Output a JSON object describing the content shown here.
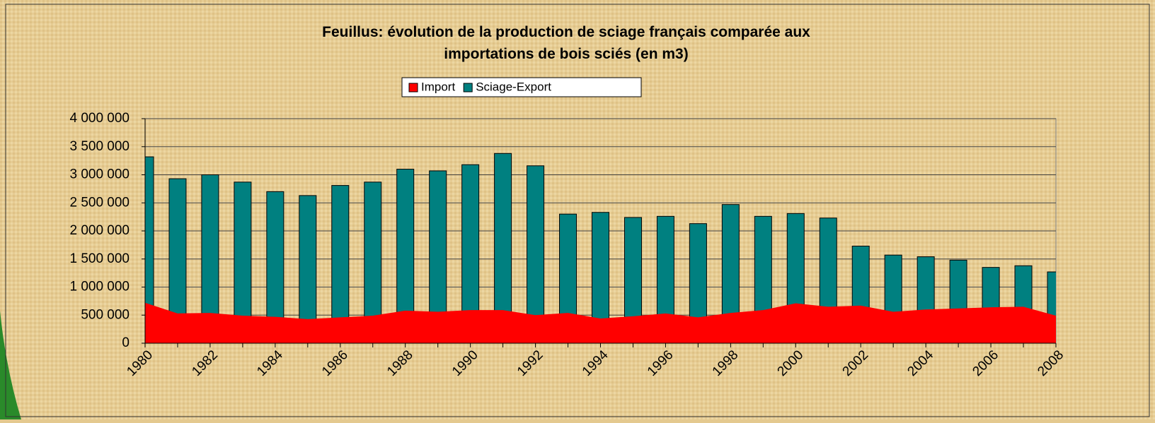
{
  "chart_data": {
    "type": "bar-area",
    "title": [
      "Feuillus: évolution de la production de sciage français comparée aux",
      "importations de bois sciés (en m3)"
    ],
    "categories": [
      "1980",
      null,
      "1982",
      null,
      "1984",
      null,
      "1986",
      null,
      "1988",
      null,
      "1990",
      null,
      "1992",
      null,
      "1994",
      null,
      "1996",
      null,
      "1998",
      null,
      "2000",
      null,
      "2002",
      null,
      "2004",
      null,
      "2006",
      null,
      "2008"
    ],
    "series": [
      {
        "name": "Import",
        "color": "#ff0000",
        "kind": "area",
        "values": [
          720000,
          530000,
          540000,
          490000,
          470000,
          430000,
          460000,
          490000,
          580000,
          560000,
          590000,
          590000,
          500000,
          540000,
          440000,
          480000,
          530000,
          460000,
          540000,
          590000,
          710000,
          650000,
          670000,
          560000,
          600000,
          620000,
          640000,
          650000,
          490000
        ]
      },
      {
        "name": "Sciage-Export",
        "color": "#008080",
        "kind": "bar",
        "values": [
          3320000,
          2930000,
          3000000,
          2870000,
          2700000,
          2630000,
          2810000,
          2870000,
          3100000,
          3070000,
          3180000,
          3380000,
          3160000,
          2300000,
          2330000,
          2240000,
          2260000,
          2130000,
          2470000,
          2260000,
          2310000,
          2230000,
          1730000,
          1570000,
          1540000,
          1480000,
          1350000,
          1380000,
          1270000
        ]
      }
    ],
    "ylim": [
      0,
      4000000
    ],
    "yticks": [
      0,
      {
        "value": 500000,
        "label": "500 000"
      },
      {
        "value": 1000000,
        "label": "1 000 000"
      },
      {
        "value": 1500000,
        "label": "1 500 000"
      },
      {
        "value": 2000000,
        "label": "2 000 000"
      },
      {
        "value": 2500000,
        "label": "2 500 000"
      },
      {
        "value": 3000000,
        "label": "3 000 000"
      },
      {
        "value": 3500000,
        "label": "3 500 000"
      },
      {
        "value": 4000000,
        "label": "4 000 000"
      }
    ],
    "grid": true,
    "legend": "top"
  }
}
